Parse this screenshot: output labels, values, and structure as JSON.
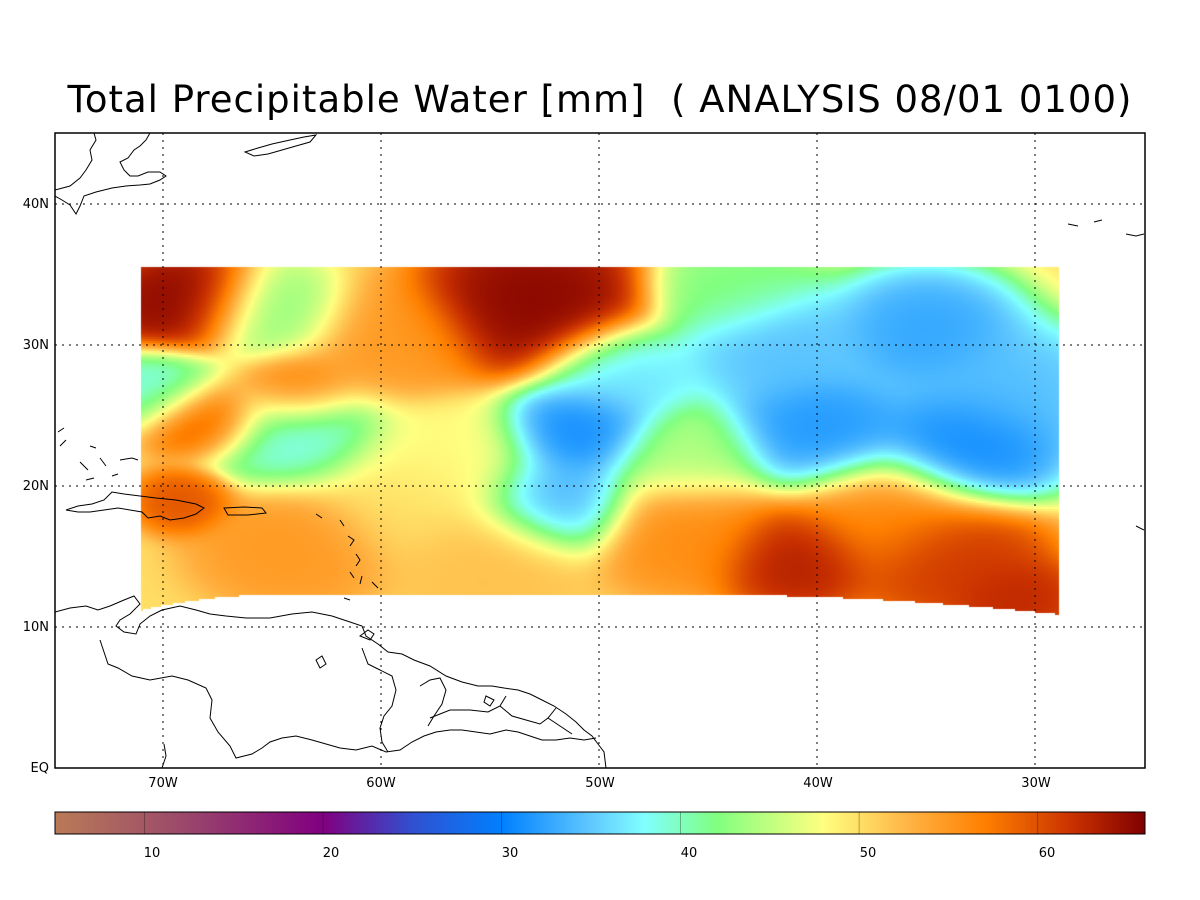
{
  "title": "Total Precipitable Water [mm]  ( ANALYSIS 08/01 0100)",
  "lat_labels": [
    "40N",
    "30N",
    "20N",
    "10N",
    "EQ"
  ],
  "lon_labels": [
    "70W",
    "60W",
    "50W",
    "40W",
    "30W"
  ],
  "colorbar": {
    "tick_labels": [
      "10",
      "20",
      "30",
      "40",
      "50",
      "60"
    ],
    "range": [
      5,
      66
    ],
    "stops": [
      {
        "value": 5,
        "color": "#b97a57"
      },
      {
        "value": 12,
        "color": "#9b4a6a"
      },
      {
        "value": 20,
        "color": "#800080"
      },
      {
        "value": 25,
        "color": "#3050d0"
      },
      {
        "value": 30,
        "color": "#0080ff"
      },
      {
        "value": 35,
        "color": "#60c8ff"
      },
      {
        "value": 38,
        "color": "#80ffff"
      },
      {
        "value": 42,
        "color": "#80ff80"
      },
      {
        "value": 48,
        "color": "#ffff80"
      },
      {
        "value": 53,
        "color": "#ffb040"
      },
      {
        "value": 57,
        "color": "#ff8000"
      },
      {
        "value": 62,
        "color": "#c83000"
      },
      {
        "value": 66,
        "color": "#800000"
      }
    ]
  },
  "field": {
    "units": "mm",
    "lon_range": [
      -71,
      -29
    ],
    "lat_range": [
      11,
      35.5
    ],
    "features": [
      {
        "lon": -69,
        "lat": 33,
        "value": 66,
        "r": 2.5
      },
      {
        "lon": -53,
        "lat": 33,
        "value": 66,
        "r": 3.5
      },
      {
        "lon": -60,
        "lat": 30,
        "value": 55,
        "r": 3
      },
      {
        "lon": -64,
        "lat": 27,
        "value": 60,
        "r": 2
      },
      {
        "lon": -68,
        "lat": 25,
        "value": 62,
        "r": 2
      },
      {
        "lon": -70,
        "lat": 27,
        "value": 38,
        "r": 2
      },
      {
        "lon": -64,
        "lat": 24,
        "value": 38,
        "r": 3
      },
      {
        "lon": -57,
        "lat": 22,
        "value": 48,
        "r": 3
      },
      {
        "lon": -65,
        "lat": 32,
        "value": 42,
        "r": 2.5
      },
      {
        "lon": -69,
        "lat": 19,
        "value": 60,
        "r": 1.5
      },
      {
        "lon": -64,
        "lat": 16,
        "value": 55,
        "r": 3
      },
      {
        "lon": -55,
        "lat": 15,
        "value": 52,
        "r": 3
      },
      {
        "lon": -59,
        "lat": 19,
        "value": 50,
        "r": 3
      },
      {
        "lon": -51,
        "lat": 24,
        "value": 30,
        "r": 2.5
      },
      {
        "lon": -52,
        "lat": 19,
        "value": 33,
        "r": 2.5
      },
      {
        "lon": -49,
        "lat": 28,
        "value": 36,
        "r": 2.5
      },
      {
        "lon": -46,
        "lat": 17,
        "value": 56,
        "r": 3
      },
      {
        "lon": -46,
        "lat": 22,
        "value": 44,
        "r": 2.5
      },
      {
        "lon": -41,
        "lat": 15,
        "value": 64,
        "r": 2.5
      },
      {
        "lon": -34,
        "lat": 15,
        "value": 62,
        "r": 3
      },
      {
        "lon": -31,
        "lat": 12,
        "value": 63,
        "r": 2
      },
      {
        "lon": -37,
        "lat": 18,
        "value": 56,
        "r": 3
      },
      {
        "lon": -40,
        "lat": 24,
        "value": 31,
        "r": 3
      },
      {
        "lon": -33,
        "lat": 23,
        "value": 30,
        "r": 3
      },
      {
        "lon": -42,
        "lat": 30,
        "value": 34,
        "r": 3
      },
      {
        "lon": -35,
        "lat": 31,
        "value": 32,
        "r": 3
      },
      {
        "lon": -31,
        "lat": 27,
        "value": 34,
        "r": 3
      },
      {
        "lon": -44,
        "lat": 34,
        "value": 42,
        "r": 2.5
      }
    ]
  }
}
